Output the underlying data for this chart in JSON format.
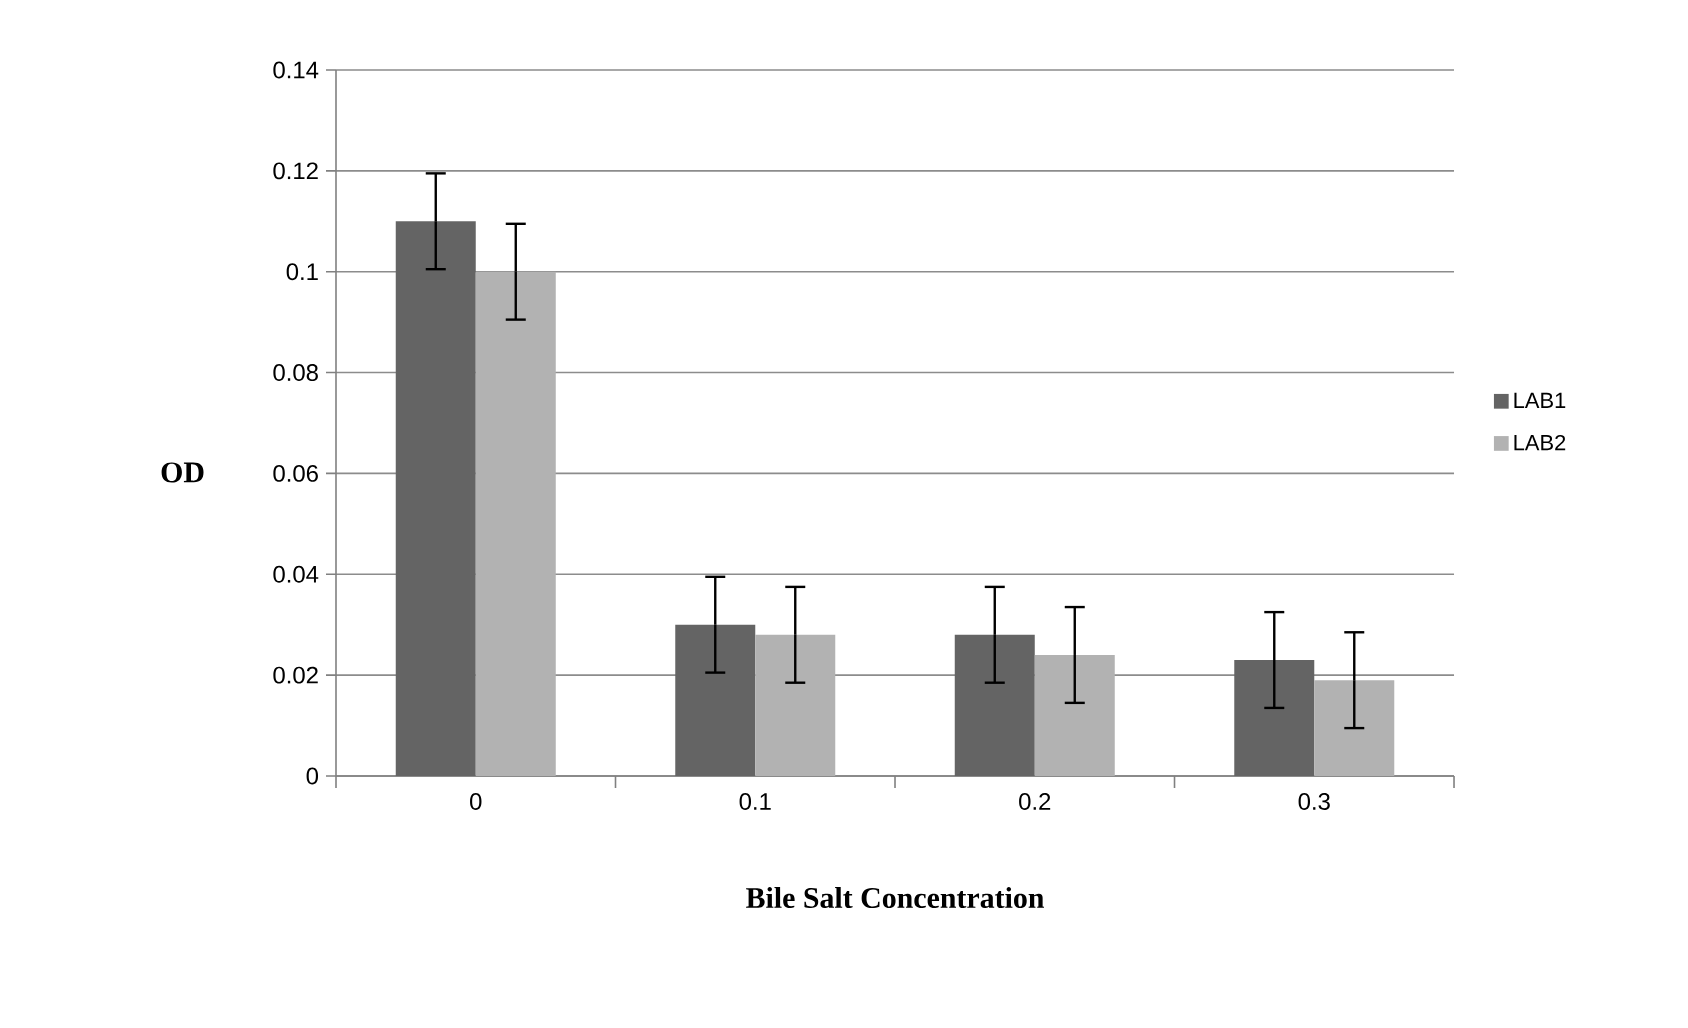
{
  "chart_data": {
    "type": "bar",
    "xlabel": "Bile Salt Concentration",
    "ylabel": "OD",
    "categories": [
      "0",
      "0.1",
      "0.2",
      "0.3"
    ],
    "series": [
      {
        "name": "LAB1",
        "color": "#646464",
        "values": [
          0.11,
          0.03,
          0.028,
          0.023
        ],
        "errors": [
          0.0095,
          0.0095,
          0.0095,
          0.0095
        ]
      },
      {
        "name": "LAB2",
        "color": "#b2b2b2",
        "values": [
          0.1,
          0.028,
          0.024,
          0.019
        ],
        "errors": [
          0.0095,
          0.0095,
          0.0095,
          0.0095
        ]
      }
    ],
    "ylim": [
      0,
      0.14
    ],
    "yticks": [
      0,
      0.02,
      0.04,
      0.06,
      0.08,
      0.1,
      0.12,
      0.14
    ],
    "grid": "y",
    "legend": "right"
  }
}
